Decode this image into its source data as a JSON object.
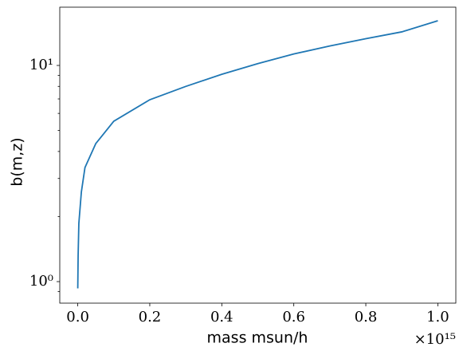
{
  "chart_data": {
    "type": "line",
    "x_label": "mass msun/h",
    "y_label": "b(m,z)",
    "x_offset_text": "×10¹⁵",
    "x": [
      1e-05,
      0.001,
      0.003,
      0.01,
      0.02,
      0.05,
      0.1,
      0.2,
      0.3,
      0.4,
      0.5,
      0.6,
      0.7,
      0.8,
      0.9,
      1.0
    ],
    "series": [
      {
        "color": "#1f77b4",
        "values": [
          0.93,
          1.32,
          1.86,
          2.6,
          3.37,
          4.35,
          5.52,
          6.94,
          8.0,
          9.1,
          10.2,
          11.3,
          12.3,
          13.3,
          14.3,
          16.1
        ]
      }
    ],
    "xlim": [
      -0.05,
      1.05
    ],
    "xticks": [
      {
        "value": 0,
        "label": "0.0"
      },
      {
        "value": 0.2,
        "label": "0.2"
      },
      {
        "value": 0.4,
        "label": "0.4"
      },
      {
        "value": 0.6,
        "label": "0.6"
      },
      {
        "value": 0.8,
        "label": "0.8"
      },
      {
        "value": 1,
        "label": "1.0"
      }
    ],
    "ylim": [
      0.795,
      18.6
    ],
    "yscale": "log",
    "yticks": [
      {
        "value": 1,
        "label": "10⁰"
      },
      {
        "value": 10,
        "label": "10¹"
      }
    ],
    "yminorticks": [
      0.9,
      2,
      3,
      4,
      5,
      6,
      7,
      8,
      9
    ],
    "grid": false
  }
}
